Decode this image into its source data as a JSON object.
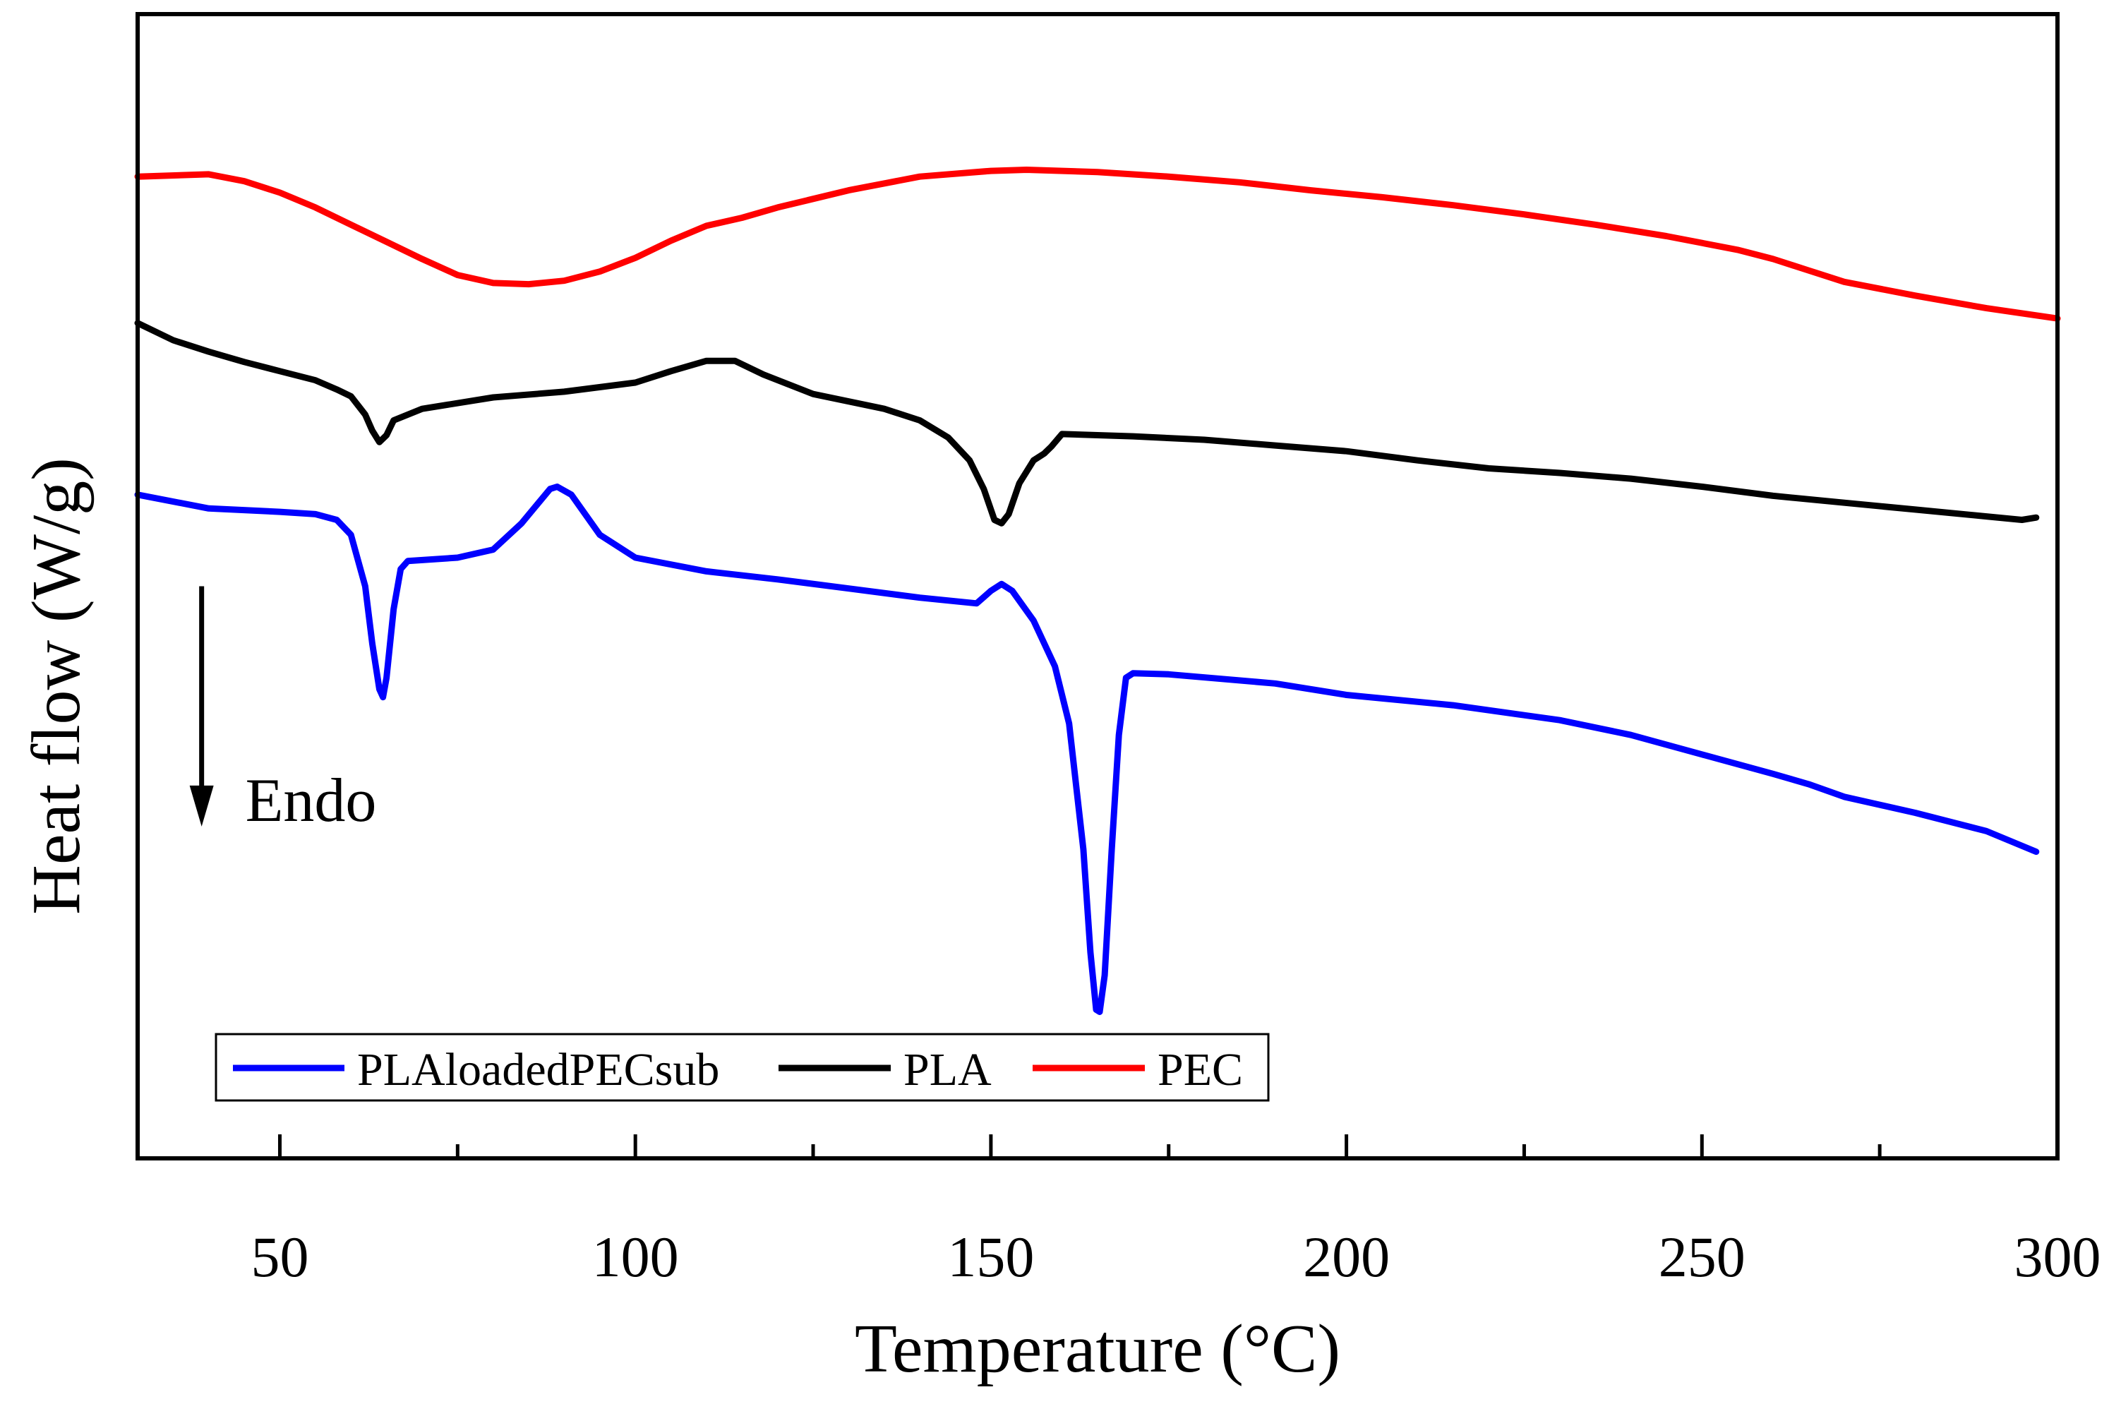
{
  "chart_data": {
    "type": "line",
    "xlabel": "Temperature (°C)",
    "ylabel": "Heat flow (W/g)",
    "xlim": [
      30,
      300
    ],
    "xticks": [
      50,
      100,
      150,
      200,
      250,
      300
    ],
    "xtick_labels": [
      "50",
      "100",
      "150",
      "200",
      "250",
      "300"
    ],
    "ylim": [
      0,
      100
    ],
    "y_units": "relative (no y tick labels shown)",
    "grid": false,
    "legend_position": "bottom-left, single row",
    "annotation": {
      "text": "Endo",
      "arrow_direction": "down",
      "x": 39,
      "y_from": 50,
      "y_to": 29
    },
    "series": [
      {
        "name": "PLAloadedPECsub",
        "color": "#0000ff",
        "points": [
          [
            30,
            58
          ],
          [
            40,
            56.8
          ],
          [
            50,
            56.5
          ],
          [
            55,
            56.3
          ],
          [
            58,
            55.8
          ],
          [
            60,
            54.5
          ],
          [
            62,
            50
          ],
          [
            63,
            45
          ],
          [
            64,
            41
          ],
          [
            64.5,
            40.3
          ],
          [
            65,
            42
          ],
          [
            66,
            48
          ],
          [
            67,
            51.5
          ],
          [
            68,
            52.2
          ],
          [
            75,
            52.5
          ],
          [
            80,
            53.2
          ],
          [
            84,
            55.5
          ],
          [
            88,
            58.5
          ],
          [
            89,
            58.7
          ],
          [
            91,
            58
          ],
          [
            95,
            54.5
          ],
          [
            100,
            52.5
          ],
          [
            110,
            51.3
          ],
          [
            120,
            50.6
          ],
          [
            130,
            49.8
          ],
          [
            140,
            49
          ],
          [
            148,
            48.5
          ],
          [
            150,
            49.6
          ],
          [
            151.5,
            50.2
          ],
          [
            153,
            49.6
          ],
          [
            156,
            47
          ],
          [
            159,
            43
          ],
          [
            161,
            38
          ],
          [
            163,
            27
          ],
          [
            164,
            18
          ],
          [
            164.8,
            13
          ],
          [
            165.3,
            12.8
          ],
          [
            166,
            16
          ],
          [
            167,
            27
          ],
          [
            168,
            37
          ],
          [
            169,
            42
          ],
          [
            170,
            42.4
          ],
          [
            175,
            42.3
          ],
          [
            190,
            41.5
          ],
          [
            200,
            40.5
          ],
          [
            215,
            39.6
          ],
          [
            230,
            38.3
          ],
          [
            240,
            37
          ],
          [
            250,
            35.3
          ],
          [
            260,
            33.6
          ],
          [
            265,
            32.7
          ],
          [
            270,
            31.6
          ],
          [
            280,
            30.2
          ],
          [
            290,
            28.6
          ],
          [
            297,
            26.8
          ]
        ]
      },
      {
        "name": "PLA",
        "color": "#000000",
        "points": [
          [
            30,
            73
          ],
          [
            35,
            71.5
          ],
          [
            40,
            70.5
          ],
          [
            45,
            69.6
          ],
          [
            50,
            68.8
          ],
          [
            55,
            68
          ],
          [
            58,
            67.2
          ],
          [
            60,
            66.6
          ],
          [
            62,
            65
          ],
          [
            63,
            63.6
          ],
          [
            64,
            62.6
          ],
          [
            65,
            63.2
          ],
          [
            66,
            64.5
          ],
          [
            70,
            65.5
          ],
          [
            80,
            66.5
          ],
          [
            90,
            67
          ],
          [
            100,
            67.8
          ],
          [
            105,
            68.8
          ],
          [
            110,
            69.7
          ],
          [
            114,
            69.7
          ],
          [
            118,
            68.5
          ],
          [
            125,
            66.8
          ],
          [
            135,
            65.5
          ],
          [
            140,
            64.5
          ],
          [
            144,
            63
          ],
          [
            147,
            61
          ],
          [
            149,
            58.5
          ],
          [
            150.5,
            55.8
          ],
          [
            151.5,
            55.5
          ],
          [
            152.5,
            56.3
          ],
          [
            154,
            59
          ],
          [
            156,
            61
          ],
          [
            157.5,
            61.6
          ],
          [
            158.5,
            62.2
          ],
          [
            160,
            63.3
          ],
          [
            170,
            63.1
          ],
          [
            180,
            62.8
          ],
          [
            190,
            62.3
          ],
          [
            200,
            61.8
          ],
          [
            210,
            61
          ],
          [
            220,
            60.3
          ],
          [
            230,
            59.9
          ],
          [
            240,
            59.4
          ],
          [
            250,
            58.7
          ],
          [
            260,
            57.9
          ],
          [
            270,
            57.3
          ],
          [
            280,
            56.7
          ],
          [
            290,
            56.1
          ],
          [
            295,
            55.8
          ],
          [
            297,
            56
          ]
        ]
      },
      {
        "name": "PEC",
        "color": "#ff0000",
        "points": [
          [
            30,
            85.8
          ],
          [
            40,
            86
          ],
          [
            45,
            85.4
          ],
          [
            50,
            84.4
          ],
          [
            55,
            83.1
          ],
          [
            60,
            81.6
          ],
          [
            65,
            80.1
          ],
          [
            70,
            78.6
          ],
          [
            75,
            77.2
          ],
          [
            80,
            76.5
          ],
          [
            85,
            76.4
          ],
          [
            90,
            76.7
          ],
          [
            95,
            77.5
          ],
          [
            100,
            78.7
          ],
          [
            105,
            80.2
          ],
          [
            110,
            81.5
          ],
          [
            115,
            82.2
          ],
          [
            120,
            83.1
          ],
          [
            130,
            84.6
          ],
          [
            140,
            85.8
          ],
          [
            150,
            86.3
          ],
          [
            155,
            86.4
          ],
          [
            165,
            86.2
          ],
          [
            175,
            85.8
          ],
          [
            185,
            85.3
          ],
          [
            195,
            84.6
          ],
          [
            205,
            84
          ],
          [
            215,
            83.3
          ],
          [
            225,
            82.5
          ],
          [
            235,
            81.6
          ],
          [
            245,
            80.6
          ],
          [
            255,
            79.4
          ],
          [
            260,
            78.6
          ],
          [
            265,
            77.6
          ],
          [
            270,
            76.6
          ],
          [
            280,
            75.4
          ],
          [
            290,
            74.3
          ],
          [
            300,
            73.4
          ]
        ]
      }
    ]
  }
}
